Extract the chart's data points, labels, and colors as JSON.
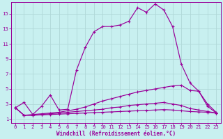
{
  "xlabel": "Windchill (Refroidissement éolien,°C)",
  "bg_color": "#c8f0f0",
  "line_color": "#990099",
  "grid_color": "#b0d8d8",
  "xlim": [
    -0.5,
    23.5
  ],
  "ylim": [
    0.5,
    16.5
  ],
  "xticks": [
    0,
    1,
    2,
    3,
    4,
    5,
    6,
    7,
    8,
    9,
    10,
    11,
    12,
    13,
    14,
    15,
    16,
    17,
    18,
    19,
    20,
    21,
    22,
    23
  ],
  "yticks": [
    1,
    3,
    5,
    7,
    9,
    11,
    13,
    15
  ],
  "line1_x": [
    0,
    1,
    2,
    3,
    4,
    5,
    6,
    7,
    8,
    9,
    10,
    11,
    12,
    13,
    14,
    15,
    16,
    17,
    18,
    19,
    20,
    21,
    22,
    23
  ],
  "line1_y": [
    2.5,
    3.2,
    1.6,
    2.7,
    4.2,
    2.2,
    2.3,
    7.5,
    10.5,
    12.6,
    13.3,
    13.3,
    13.5,
    14.0,
    15.8,
    15.2,
    16.3,
    15.5,
    13.3,
    8.3,
    5.8,
    4.7,
    3.0,
    1.9
  ],
  "line2_x": [
    0,
    1,
    2,
    3,
    4,
    5,
    6,
    7,
    8,
    9,
    10,
    11,
    12,
    13,
    14,
    15,
    16,
    17,
    18,
    19,
    20,
    21,
    22,
    23
  ],
  "line2_y": [
    2.5,
    1.5,
    1.6,
    1.7,
    1.8,
    1.9,
    2.1,
    2.3,
    2.6,
    3.0,
    3.4,
    3.7,
    4.0,
    4.3,
    4.6,
    4.8,
    5.0,
    5.2,
    5.4,
    5.5,
    4.8,
    4.7,
    2.7,
    1.8
  ],
  "line3_x": [
    0,
    1,
    2,
    3,
    4,
    5,
    6,
    7,
    8,
    9,
    10,
    11,
    12,
    13,
    14,
    15,
    16,
    17,
    18,
    19,
    20,
    21,
    22,
    23
  ],
  "line3_y": [
    2.5,
    1.5,
    1.5,
    1.6,
    1.7,
    1.8,
    1.9,
    2.0,
    2.1,
    2.2,
    2.3,
    2.5,
    2.6,
    2.8,
    2.9,
    3.0,
    3.1,
    3.2,
    3.0,
    2.8,
    2.4,
    2.2,
    2.0,
    1.8
  ],
  "line4_x": [
    0,
    1,
    2,
    3,
    4,
    5,
    6,
    7,
    8,
    9,
    10,
    11,
    12,
    13,
    14,
    15,
    16,
    17,
    18,
    19,
    20,
    21,
    22,
    23
  ],
  "line4_y": [
    2.5,
    1.5,
    1.5,
    1.55,
    1.6,
    1.65,
    1.7,
    1.75,
    1.8,
    1.85,
    1.9,
    1.95,
    2.0,
    2.05,
    2.1,
    2.15,
    2.2,
    2.25,
    2.2,
    2.1,
    2.0,
    1.95,
    1.9,
    1.8
  ]
}
